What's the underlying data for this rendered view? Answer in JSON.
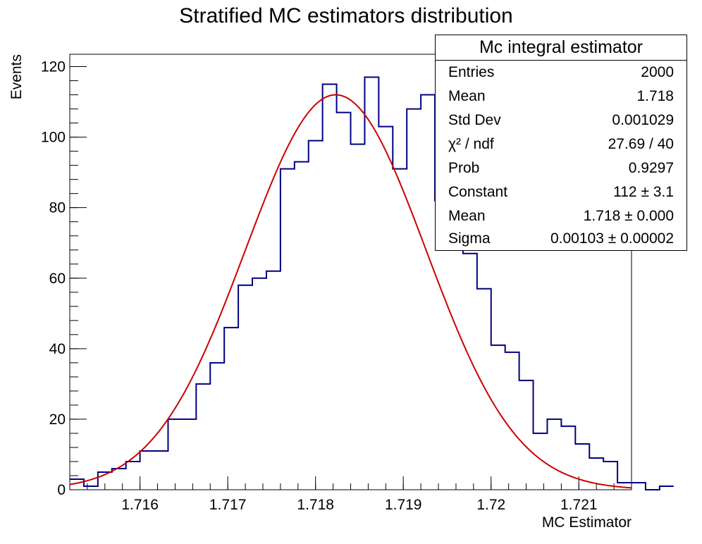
{
  "chart_data": {
    "type": "histogram",
    "title": "Stratified MC estimators distribution",
    "xlabel": "MC Estimator",
    "ylabel": "Events",
    "xlim": [
      1.7152,
      1.7216
    ],
    "ylim": [
      0,
      120
    ],
    "x_ticks": [
      1.716,
      1.717,
      1.718,
      1.719,
      1.72,
      1.721
    ],
    "x_tick_labels": [
      "1.716",
      "1.717",
      "1.718",
      "1.719",
      "1.72",
      "1.721"
    ],
    "y_ticks": [
      0,
      20,
      40,
      60,
      80,
      100,
      120
    ],
    "y_tick_labels": [
      "0",
      "20",
      "40",
      "60",
      "80",
      "100",
      "120"
    ],
    "bin_width": 0.00016,
    "series": [
      {
        "type": "step",
        "color": "#000080",
        "bin_edges_start": 1.7152,
        "counts": [
          3,
          1,
          5,
          6,
          8,
          11,
          11,
          20,
          20,
          30,
          36,
          46,
          58,
          60,
          62,
          91,
          93,
          99,
          115,
          107,
          98,
          117,
          103,
          91,
          108,
          112,
          82,
          81,
          67,
          57,
          41,
          39,
          31,
          16,
          20,
          18,
          13,
          9,
          8,
          2,
          2,
          0,
          1
        ]
      },
      {
        "type": "line",
        "name": "Gaussian fit",
        "color": "#cc0000",
        "constant": 112,
        "mean": 1.71823,
        "sigma": 0.00103
      }
    ],
    "stats_box": {
      "title": "Mc integral estimator",
      "rows": [
        {
          "label": "Entries",
          "value": "2000"
        },
        {
          "label": "Mean",
          "value": "1.718"
        },
        {
          "label": "Std Dev",
          "value": "0.001029"
        },
        {
          "label": "χ² / ndf",
          "value": "27.69 / 40"
        },
        {
          "label": "Prob",
          "value": "0.9297"
        },
        {
          "label": "Constant",
          "value": "112 ± 3.1"
        },
        {
          "label": "Mean",
          "value": "1.718 ± 0.000"
        },
        {
          "label": "Sigma",
          "value": "0.00103 ± 0.00002"
        }
      ]
    }
  }
}
